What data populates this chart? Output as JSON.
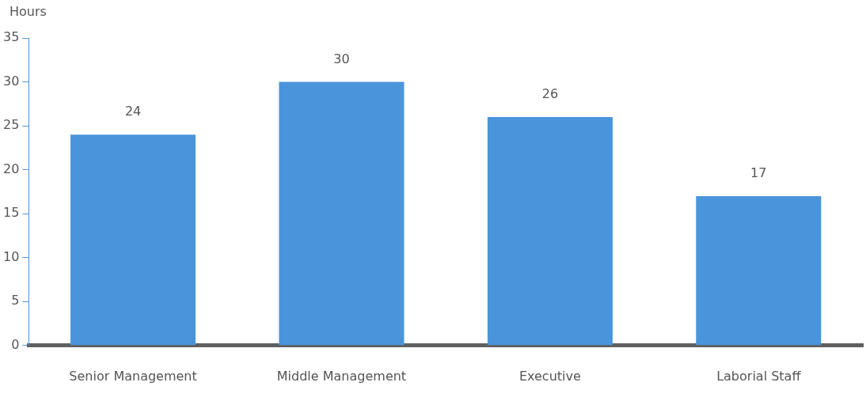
{
  "chart_data": {
    "type": "bar",
    "ylabel": "Hours",
    "categories": [
      "Senior Management",
      "Middle Management",
      "Executive",
      "Laborial Staff"
    ],
    "values": [
      24,
      30,
      26,
      17
    ],
    "color": "#4a94dc",
    "ylim": [
      0,
      35
    ],
    "yticks": [
      0,
      5,
      10,
      15,
      20,
      25,
      30,
      35
    ],
    "grid": false,
    "legend": false,
    "data_labels": true
  }
}
